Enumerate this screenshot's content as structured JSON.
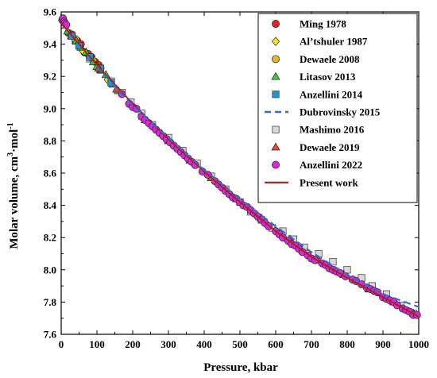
{
  "chart_data": {
    "type": "scatter",
    "xlabel": "Pressure, kbar",
    "ylabel_main": "Molar volume, cm",
    "ylabel_sup1": "3",
    "ylabel_mid": "·mol",
    "ylabel_sup2": "-1",
    "xlim": [
      0,
      1000
    ],
    "ylim": [
      7.6,
      9.6
    ],
    "xticks": [
      0,
      100,
      200,
      300,
      400,
      500,
      600,
      700,
      800,
      900,
      1000
    ],
    "yticks": [
      7.6,
      7.8,
      8.0,
      8.2,
      8.4,
      8.6,
      8.8,
      9.0,
      9.2,
      9.4,
      9.6
    ],
    "ytick_labels": [
      "7.6",
      "7.8",
      "8.0",
      "8.2",
      "8.4",
      "8.6",
      "8.8",
      "9.0",
      "9.2",
      "9.4",
      "9.6"
    ],
    "grid": false,
    "legend_position": "top-right",
    "series": [
      {
        "name": "Ming 1978",
        "marker": "circle",
        "color": "#e8231f",
        "points": [
          [
            20,
            9.47
          ],
          [
            30,
            9.46
          ],
          [
            45,
            9.42
          ],
          [
            55,
            9.4
          ],
          [
            65,
            9.35
          ],
          [
            75,
            9.34
          ],
          [
            85,
            9.32
          ],
          [
            95,
            9.29
          ],
          [
            105,
            9.27
          ]
        ]
      },
      {
        "name": "Al’tshuler 1987",
        "marker": "diamond",
        "color": "#f5e51d",
        "points": [
          [
            60,
            9.36
          ],
          [
            90,
            9.3
          ],
          [
            130,
            9.18
          ]
        ]
      },
      {
        "name": "Dewaele 2008",
        "marker": "circle",
        "color": "#f0b020",
        "points": [
          [
            40,
            9.43
          ],
          [
            80,
            9.32
          ],
          [
            110,
            9.25
          ]
        ]
      },
      {
        "name": "Litasov 2013",
        "marker": "triangle",
        "color": "#3cc93c",
        "points": [
          [
            18,
            9.48
          ],
          [
            28,
            9.45
          ],
          [
            42,
            9.42
          ],
          [
            55,
            9.38
          ],
          [
            70,
            9.35
          ],
          [
            90,
            9.29
          ],
          [
            100,
            9.26
          ],
          [
            110,
            9.24
          ],
          [
            125,
            9.21
          ],
          [
            145,
            9.15
          ],
          [
            160,
            9.11
          ]
        ]
      },
      {
        "name": "Anzellini 2014",
        "marker": "square",
        "color": "#1e96d2",
        "points": [
          [
            30,
            9.45
          ],
          [
            50,
            9.39
          ],
          [
            80,
            9.32
          ],
          [
            110,
            9.25
          ],
          [
            140,
            9.16
          ]
        ]
      },
      {
        "name": "Dubrovinsky 2015",
        "marker": "dashed-line",
        "color": "#3070c8",
        "points": [
          [
            100,
            9.26
          ],
          [
            200,
            9.02
          ],
          [
            300,
            8.82
          ],
          [
            400,
            8.62
          ],
          [
            500,
            8.44
          ],
          [
            600,
            8.27
          ],
          [
            700,
            8.11
          ],
          [
            800,
            7.97
          ],
          [
            900,
            7.85
          ],
          [
            1000,
            7.77
          ]
        ]
      },
      {
        "name": "Mashimo 2016",
        "marker": "square",
        "color": "#d8d8d8",
        "points": [
          [
            40,
            9.42
          ],
          [
            80,
            9.31
          ],
          [
            110,
            9.24
          ],
          [
            140,
            9.17
          ],
          [
            170,
            9.1
          ],
          [
            195,
            9.04
          ],
          [
            225,
            8.97
          ],
          [
            255,
            8.9
          ],
          [
            300,
            8.82
          ],
          [
            340,
            8.74
          ],
          [
            380,
            8.66
          ],
          [
            420,
            8.58
          ],
          [
            460,
            8.5
          ],
          [
            500,
            8.42
          ],
          [
            530,
            8.36
          ],
          [
            560,
            8.31
          ],
          [
            590,
            8.26
          ],
          [
            620,
            8.24
          ],
          [
            650,
            8.19
          ],
          [
            680,
            8.14
          ],
          [
            720,
            8.1
          ],
          [
            760,
            8.05
          ],
          [
            800,
            8.0
          ],
          [
            840,
            7.95
          ],
          [
            870,
            7.9
          ],
          [
            910,
            7.85
          ],
          [
            950,
            7.78
          ],
          [
            985,
            7.73
          ]
        ]
      },
      {
        "name": "Dewaele 2019",
        "marker": "triangle",
        "color": "#e24a33",
        "points": [
          [
            105,
            9.25
          ],
          [
            155,
            9.12
          ],
          [
            235,
            8.93
          ],
          [
            300,
            8.8
          ],
          [
            360,
            8.68
          ],
          [
            420,
            8.57
          ],
          [
            490,
            8.44
          ],
          [
            560,
            8.32
          ],
          [
            640,
            8.19
          ],
          [
            720,
            8.06
          ],
          [
            790,
            7.97
          ],
          [
            860,
            7.88
          ],
          [
            930,
            7.8
          ],
          [
            985,
            7.73
          ]
        ]
      },
      {
        "name": "Anzellini 2022",
        "marker": "circle",
        "color": "#d829d8",
        "points": [
          [
            3,
            9.55
          ],
          [
            5,
            9.56
          ],
          [
            8,
            9.54
          ],
          [
            10,
            9.53
          ],
          [
            14,
            9.52
          ],
          [
            170,
            9.09
          ],
          [
            190,
            9.03
          ],
          [
            200,
            9.01
          ],
          [
            210,
            9.0
          ],
          [
            225,
            8.95
          ],
          [
            235,
            8.93
          ],
          [
            245,
            8.91
          ],
          [
            255,
            8.89
          ],
          [
            265,
            8.87
          ],
          [
            275,
            8.85
          ],
          [
            285,
            8.83
          ],
          [
            295,
            8.81
          ],
          [
            305,
            8.79
          ],
          [
            315,
            8.77
          ],
          [
            325,
            8.75
          ],
          [
            335,
            8.73
          ],
          [
            345,
            8.71
          ],
          [
            355,
            8.69
          ],
          [
            365,
            8.67
          ],
          [
            375,
            8.65
          ],
          [
            395,
            8.61
          ],
          [
            410,
            8.59
          ],
          [
            430,
            8.55
          ],
          [
            440,
            8.53
          ],
          [
            450,
            8.51
          ],
          [
            460,
            8.49
          ],
          [
            470,
            8.47
          ],
          [
            480,
            8.45
          ],
          [
            490,
            8.44
          ],
          [
            500,
            8.42
          ],
          [
            510,
            8.4
          ],
          [
            520,
            8.39
          ],
          [
            530,
            8.37
          ],
          [
            540,
            8.35
          ],
          [
            550,
            8.33
          ],
          [
            560,
            8.31
          ],
          [
            570,
            8.29
          ],
          [
            580,
            8.27
          ],
          [
            600,
            8.24
          ],
          [
            610,
            8.22
          ],
          [
            620,
            8.2
          ],
          [
            635,
            8.18
          ],
          [
            645,
            8.16
          ],
          [
            655,
            8.15
          ],
          [
            665,
            8.13
          ],
          [
            675,
            8.11
          ],
          [
            690,
            8.09
          ],
          [
            700,
            8.07
          ],
          [
            710,
            8.06
          ],
          [
            730,
            8.04
          ],
          [
            740,
            8.03
          ],
          [
            750,
            8.01
          ],
          [
            760,
            8.0
          ],
          [
            770,
            7.99
          ],
          [
            780,
            7.98
          ],
          [
            795,
            7.96
          ],
          [
            815,
            7.94
          ],
          [
            825,
            7.93
          ],
          [
            840,
            7.91
          ],
          [
            855,
            7.89
          ],
          [
            865,
            7.88
          ],
          [
            875,
            7.87
          ],
          [
            885,
            7.86
          ],
          [
            900,
            7.83
          ],
          [
            910,
            7.82
          ],
          [
            920,
            7.81
          ],
          [
            930,
            7.8
          ],
          [
            940,
            7.78
          ],
          [
            955,
            7.76
          ],
          [
            965,
            7.75
          ],
          [
            975,
            7.74
          ],
          [
            985,
            7.72
          ],
          [
            995,
            7.72
          ]
        ]
      },
      {
        "name": "Present work",
        "marker": "solid-line",
        "color": "#b01c1c",
        "points": [
          [
            0,
            9.53
          ],
          [
            100,
            9.27
          ],
          [
            200,
            9.03
          ],
          [
            300,
            8.81
          ],
          [
            400,
            8.61
          ],
          [
            500,
            8.42
          ],
          [
            600,
            8.24
          ],
          [
            700,
            8.08
          ],
          [
            800,
            7.95
          ],
          [
            900,
            7.83
          ],
          [
            1000,
            7.71
          ]
        ]
      }
    ]
  }
}
